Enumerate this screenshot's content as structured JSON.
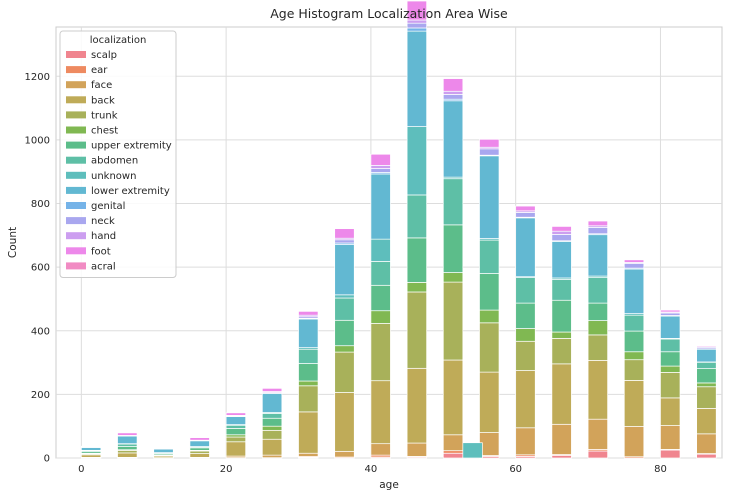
{
  "chart_data": {
    "type": "bar",
    "stacked": true,
    "title": "Age Histogram Localization Area Wise",
    "xlabel": "age",
    "ylabel": "Count",
    "xlim": [
      -3.5,
      88.5
    ],
    "ylim": [
      0,
      1355
    ],
    "xticks": [
      0,
      20,
      40,
      60,
      80
    ],
    "yticks": [
      0,
      200,
      400,
      600,
      800,
      1000,
      1200
    ],
    "grid": true,
    "bin_width": 2.7,
    "x": [
      0,
      5,
      10,
      15,
      20,
      25,
      30,
      35,
      40,
      45,
      50,
      55,
      60,
      65,
      70,
      75,
      80,
      85
    ],
    "legend": {
      "title": "localization",
      "position": "upper-left"
    },
    "series": [
      {
        "name": "scalp",
        "color": "#f0858f",
        "values": [
          0,
          0,
          0,
          0,
          0,
          0,
          2,
          0,
          3,
          3,
          15,
          5,
          5,
          8,
          22,
          0,
          25,
          12
        ]
      },
      {
        "name": "ear",
        "color": "#ee8a60",
        "values": [
          0,
          0,
          0,
          0,
          1,
          1,
          3,
          3,
          6,
          2,
          8,
          3,
          5,
          3,
          5,
          4,
          2,
          2
        ]
      },
      {
        "name": "face",
        "color": "#d2a35a",
        "values": [
          2,
          2,
          1,
          2,
          5,
          8,
          10,
          18,
          36,
          42,
          50,
          72,
          85,
          95,
          95,
          95,
          75,
          62
        ]
      },
      {
        "name": "back",
        "color": "#bfab58",
        "values": [
          8,
          14,
          5,
          12,
          45,
          50,
          130,
          185,
          198,
          235,
          235,
          190,
          180,
          190,
          185,
          145,
          87,
          80
        ]
      },
      {
        "name": "trunk",
        "color": "#a8b15a",
        "values": [
          3,
          8,
          2,
          8,
          15,
          28,
          82,
          127,
          180,
          240,
          245,
          155,
          92,
          80,
          80,
          65,
          80,
          68
        ]
      },
      {
        "name": "chest",
        "color": "#80b852",
        "values": [
          2,
          2,
          1,
          2,
          7,
          13,
          15,
          20,
          40,
          30,
          30,
          40,
          40,
          20,
          45,
          25,
          20,
          12
        ]
      },
      {
        "name": "upper extremity",
        "color": "#5cbd8a",
        "values": [
          5,
          10,
          4,
          8,
          20,
          25,
          55,
          80,
          80,
          140,
          150,
          115,
          80,
          100,
          55,
          65,
          45,
          45
        ]
      },
      {
        "name": "abdomen",
        "color": "#5ebfa6",
        "values": [
          3,
          8,
          3,
          3,
          10,
          15,
          45,
          70,
          75,
          135,
          145,
          105,
          80,
          65,
          80,
          50,
          40,
          20
        ]
      },
      {
        "name": "unknown",
        "color": "#5ebebc",
        "values": [
          1,
          1,
          1,
          1,
          2,
          3,
          5,
          10,
          70,
          215,
          5,
          5,
          3,
          5,
          5,
          5,
          2,
          1
        ]
      },
      {
        "name": "lower extremity",
        "color": "#62b8d2",
        "values": [
          9,
          24,
          11,
          18,
          25,
          60,
          90,
          158,
          205,
          300,
          240,
          260,
          185,
          115,
          130,
          140,
          70,
          40
        ]
      },
      {
        "name": "genital",
        "color": "#75b3e8",
        "values": [
          0,
          0,
          0,
          0,
          0,
          0,
          2,
          5,
          5,
          10,
          5,
          2,
          2,
          2,
          3,
          3,
          2,
          1
        ]
      },
      {
        "name": "neck",
        "color": "#a9a7ef",
        "values": [
          1,
          1,
          1,
          1,
          2,
          3,
          5,
          10,
          12,
          15,
          15,
          20,
          15,
          20,
          20,
          15,
          8,
          5
        ]
      },
      {
        "name": "hand",
        "color": "#cc9ef0",
        "values": [
          1,
          1,
          1,
          1,
          2,
          3,
          5,
          5,
          10,
          10,
          10,
          5,
          5,
          10,
          5,
          3,
          3,
          2
        ]
      },
      {
        "name": "foot",
        "color": "#ed88ea",
        "values": [
          2,
          8,
          2,
          8,
          8,
          10,
          12,
          30,
          35,
          60,
          40,
          25,
          15,
          15,
          15,
          8,
          6,
          3
        ]
      },
      {
        "name": "acral",
        "color": "#f18bc3",
        "values": [
          0,
          0,
          0,
          0,
          0,
          0,
          0,
          0,
          0,
          1,
          2,
          0,
          0,
          0,
          0,
          0,
          0,
          0
        ]
      }
    ],
    "extra_bars": [
      {
        "x": 50,
        "offset_bins": 1,
        "series": "unknown",
        "value": 48
      }
    ]
  }
}
